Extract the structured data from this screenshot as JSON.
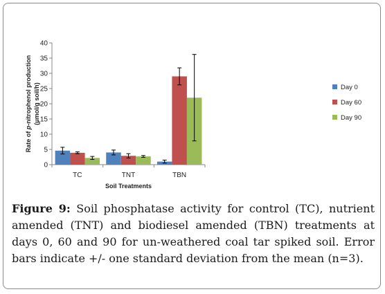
{
  "chart_data": {
    "type": "bar",
    "title": "",
    "xlabel": "Soil Treatments",
    "ylabel_line1": "Rate of p-nitrophenol production",
    "ylabel_line2": "(μmol/g soil/h)",
    "ylim": [
      0,
      40
    ],
    "yticks": [
      0,
      5,
      10,
      15,
      20,
      25,
      30,
      35,
      40
    ],
    "categories": [
      "TC",
      "TNT",
      "TBN"
    ],
    "series": [
      {
        "name": "Day 0",
        "color": "#4f81bd",
        "values": [
          4.6,
          4.0,
          1.0
        ],
        "errors": [
          1.1,
          0.8,
          0.5
        ]
      },
      {
        "name": "Day 60",
        "color": "#c0504d",
        "values": [
          3.9,
          2.9,
          29.0
        ],
        "errors": [
          0.3,
          0.7,
          2.8
        ]
      },
      {
        "name": "Day 90",
        "color": "#9bbb59",
        "values": [
          2.2,
          2.7,
          22.0
        ],
        "errors": [
          0.5,
          0.3,
          14.2
        ]
      }
    ],
    "legend_position": "right",
    "grid": false
  },
  "caption": {
    "label": "Figure 9:",
    "text": " Soil phosphatase activity for control (TC), nutrient amended (TNT) and biodiesel amended (TBN) treatments at days 0, 60 and 90 for un-weathered coal tar spiked soil. Error bars indicate +/- one standard deviation from the mean (n=3)."
  }
}
